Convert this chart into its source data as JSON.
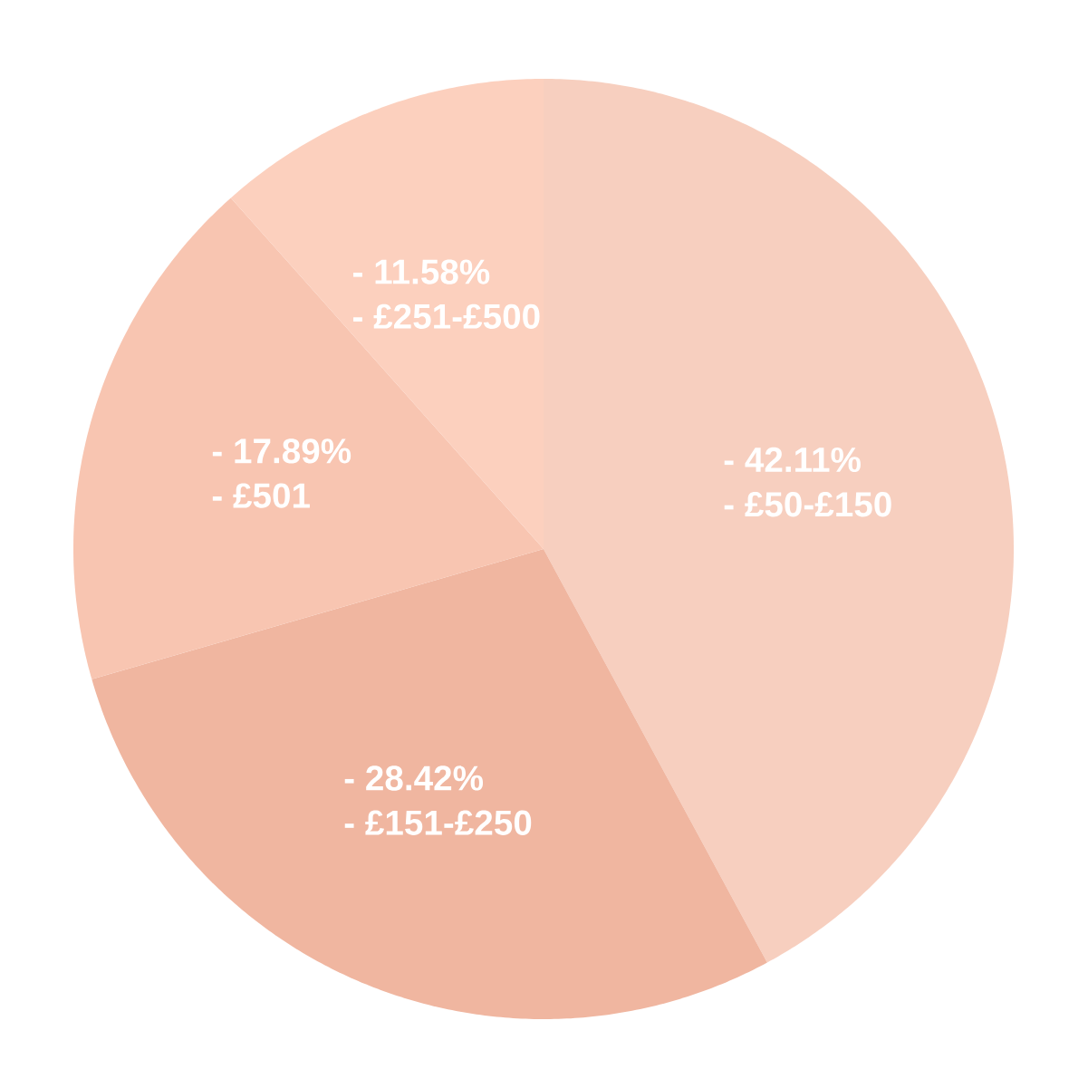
{
  "chart_data": {
    "type": "pie",
    "categories": [
      "‐ £50-£150",
      "‐ £151-£250",
      "‐ £501",
      "‐ £251-£500"
    ],
    "values": [
      42.11,
      28.42,
      17.89,
      11.58
    ],
    "value_labels": [
      "‐ 42.11%",
      "‐ 28.42%",
      "‐ 17.89%",
      "‐ 11.58%"
    ],
    "colors": [
      "#f7cfbf",
      "#f0b6a0",
      "#f8c5b1",
      "#fcd0be"
    ]
  }
}
